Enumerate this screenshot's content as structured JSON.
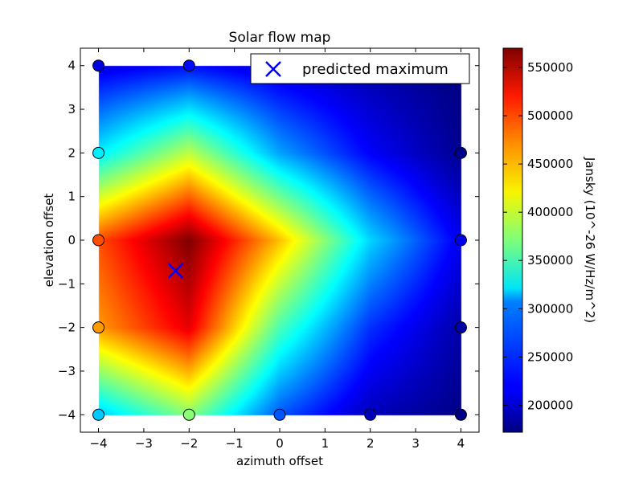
{
  "chart_data": {
    "type": "heatmap",
    "title": "Solar flow map",
    "xlabel": "azimuth offset",
    "ylabel": "elevation offset",
    "xlim": [
      -4.4,
      4.4
    ],
    "ylim": [
      -4.4,
      4.4
    ],
    "xticks": [
      -4,
      -3,
      -2,
      -1,
      0,
      1,
      2,
      3,
      4
    ],
    "yticks": [
      -4,
      -3,
      -2,
      -1,
      0,
      1,
      2,
      3,
      4
    ],
    "xtick_labels": [
      "−4",
      "−3",
      "−2",
      "−1",
      "0",
      "1",
      "2",
      "3",
      "4"
    ],
    "ytick_labels": [
      "−4",
      "−3",
      "−2",
      "−1",
      "0",
      "1",
      "2",
      "3",
      "4"
    ],
    "colormap": "jet",
    "color_range": [
      172000,
      570000
    ],
    "colorbar_label": "Jansky (10^-26 W/Hz/m^2)",
    "colorbar_ticks": [
      200000,
      250000,
      300000,
      350000,
      400000,
      450000,
      500000,
      550000
    ],
    "colorbar_tick_labels": [
      "200000",
      "250000",
      "300000",
      "350000",
      "400000",
      "450000",
      "500000",
      "550000"
    ],
    "grid": false,
    "legend_position": "top-right",
    "x": [
      -4,
      -2,
      0,
      2,
      4
    ],
    "y": [
      -4,
      -2,
      0,
      2,
      4
    ],
    "z": [
      [
        300000,
        375000,
        255000,
        195000,
        175000
      ],
      [
        460000,
        530000,
        350000,
        240000,
        188000
      ],
      [
        490000,
        570000,
        445000,
        305000,
        215000
      ],
      [
        315000,
        395000,
        285000,
        220000,
        178000
      ],
      [
        210000,
        225000,
        205000,
        188000,
        172000
      ]
    ],
    "sample_points": [
      {
        "x": -4,
        "y": 4
      },
      {
        "x": -2,
        "y": 4
      },
      {
        "x": -4,
        "y": 2
      },
      {
        "x": 4,
        "y": 2
      },
      {
        "x": -4,
        "y": 0
      },
      {
        "x": 4,
        "y": 0
      },
      {
        "x": -4,
        "y": -2
      },
      {
        "x": 4,
        "y": -2
      },
      {
        "x": -4,
        "y": -4
      },
      {
        "x": -2,
        "y": -4
      },
      {
        "x": 0,
        "y": -4
      },
      {
        "x": 2,
        "y": -4
      },
      {
        "x": 4,
        "y": -4
      }
    ],
    "predicted_maximum": {
      "name": "predicted maximum",
      "x": -2.3,
      "y": -0.7,
      "color": "#0000ff"
    }
  }
}
